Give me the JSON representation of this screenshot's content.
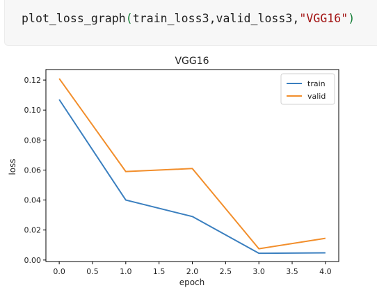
{
  "code": {
    "func": "plot_loss_graph",
    "open_paren": "(",
    "args": "train_loss3,valid_loss3,",
    "string_arg": "\"VGG16\"",
    "close_paren": ")"
  },
  "colors": {
    "train": "#3a7fbf",
    "valid": "#f28e2b",
    "code_bg": "#f7f7f7",
    "string": "#a31515",
    "paren": "#137d35"
  },
  "chart_data": {
    "type": "line",
    "title": "VGG16",
    "xlabel": "epoch",
    "ylabel": "loss",
    "x": [
      0,
      1,
      2,
      3,
      4
    ],
    "xlim": [
      -0.2,
      4.2
    ],
    "ylim": [
      -0.001,
      0.127
    ],
    "xticks": [
      "0.0",
      "0.5",
      "1.0",
      "1.5",
      "2.0",
      "2.5",
      "3.0",
      "3.5",
      "4.0"
    ],
    "xtick_values": [
      0,
      0.5,
      1,
      1.5,
      2,
      2.5,
      3,
      3.5,
      4
    ],
    "yticks": [
      "0.00",
      "0.02",
      "0.04",
      "0.06",
      "0.08",
      "0.10",
      "0.12"
    ],
    "ytick_values": [
      0,
      0.02,
      0.04,
      0.06,
      0.08,
      0.1,
      0.12
    ],
    "grid": false,
    "legend_position": "top-right",
    "series": [
      {
        "name": "train",
        "values": [
          0.107,
          0.04,
          0.029,
          0.0045,
          0.0048
        ]
      },
      {
        "name": "valid",
        "values": [
          0.121,
          0.059,
          0.061,
          0.0075,
          0.0145
        ]
      }
    ]
  }
}
